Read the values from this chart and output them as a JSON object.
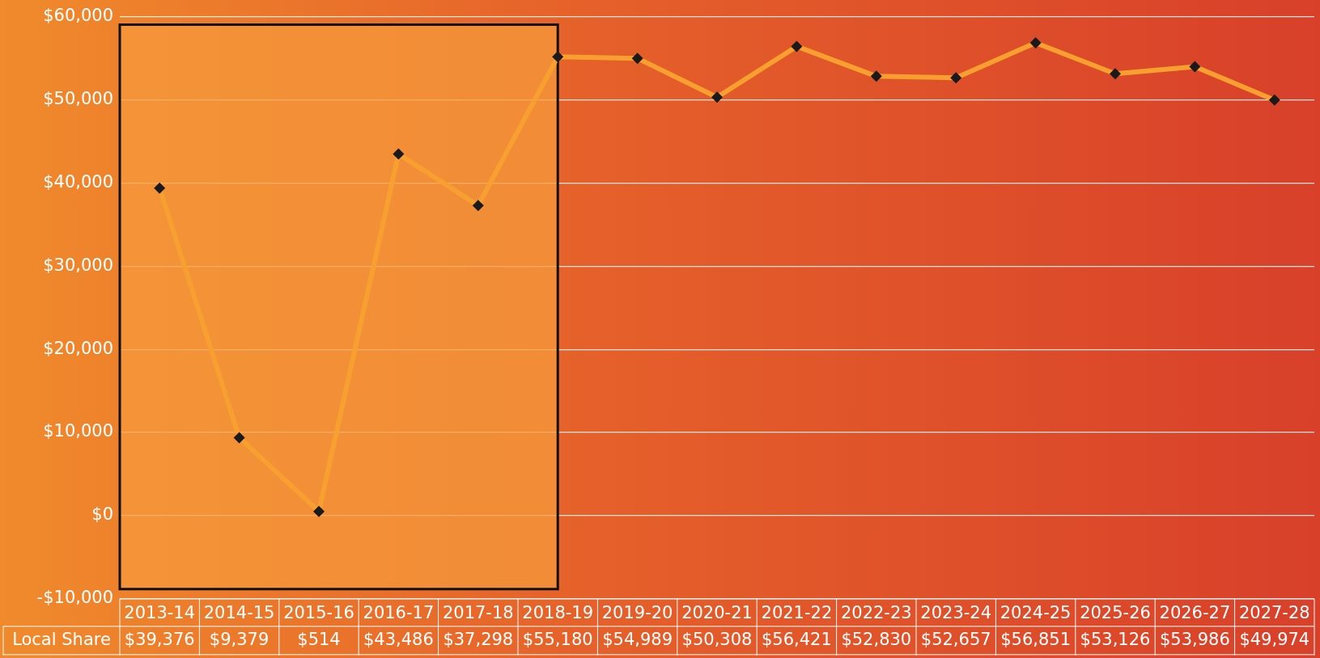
{
  "chart_data": {
    "type": "line",
    "categories": [
      "2013-14",
      "2014-15",
      "2015-16",
      "2016-17",
      "2017-18",
      "2018-19",
      "2019-20",
      "2020-21",
      "2021-22",
      "2022-23",
      "2023-24",
      "2024-25",
      "2025-26",
      "2026-27",
      "2027-28"
    ],
    "series": [
      {
        "name": "Local Share",
        "color": "#f7a030",
        "values": [
          39376,
          9379,
          514,
          43486,
          37298,
          55180,
          54989,
          50308,
          56421,
          52830,
          52657,
          56851,
          53126,
          53986,
          49974
        ],
        "value_labels": [
          "$39,376",
          "$9,379",
          "$514",
          "$43,486",
          "$37,298",
          "$55,180",
          "$54,989",
          "$50,308",
          "$56,421",
          "$52,830",
          "$52,657",
          "$56,851",
          "$53,126",
          "$53,986",
          "$49,974"
        ]
      }
    ],
    "ylim": [
      -10000,
      60000
    ],
    "yticks": [
      {
        "value": -10000,
        "label": "-$10,000"
      },
      {
        "value": 0,
        "label": "$0"
      },
      {
        "value": 10000,
        "label": "$10,000"
      },
      {
        "value": 20000,
        "label": "$20,000"
      },
      {
        "value": 30000,
        "label": "$30,000"
      },
      {
        "value": 40000,
        "label": "$40,000"
      },
      {
        "value": 50000,
        "label": "$50,000"
      },
      {
        "value": 60000,
        "label": "$60,000"
      }
    ],
    "grid": "y",
    "marker": "diamond",
    "line_style": "solid",
    "legend": false,
    "bands": [
      {
        "axis": "x",
        "from": "2013-14",
        "to": "2018-19",
        "color": "#f59a3c"
      }
    ]
  }
}
